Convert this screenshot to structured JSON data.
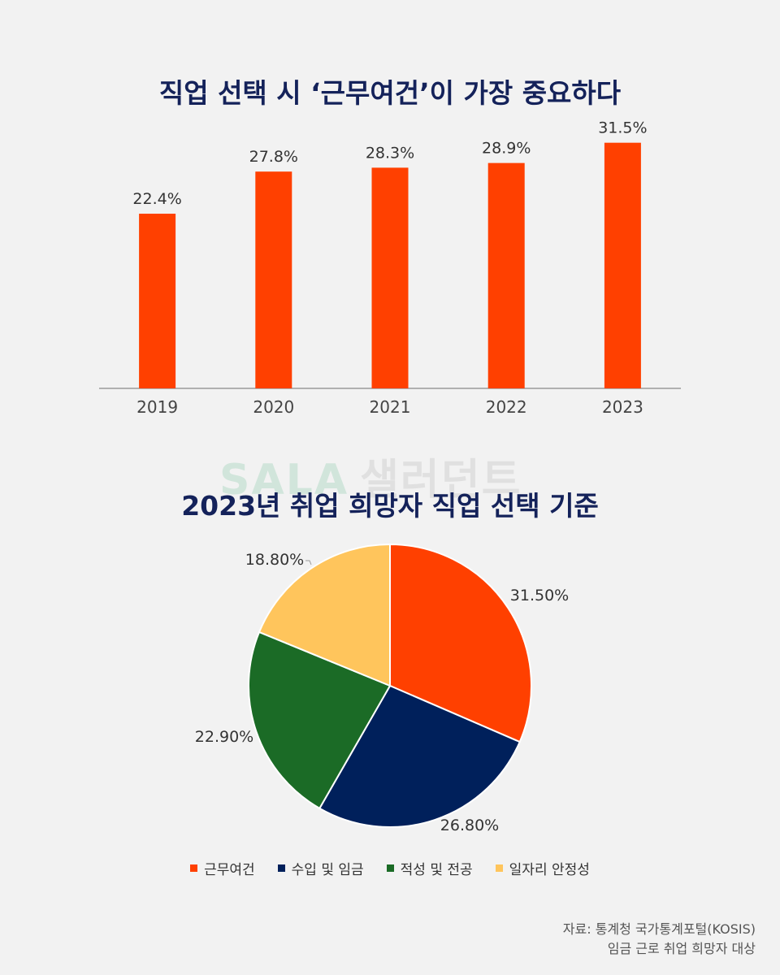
{
  "watermark": {
    "latin": "SALA",
    "korean": "샐러던트"
  },
  "chart_data": [
    {
      "type": "bar",
      "title": "직업 선택 시 ‘근무여건’이 가장 중요하다",
      "categories": [
        "2019",
        "2020",
        "2021",
        "2022",
        "2023"
      ],
      "values": [
        22.4,
        27.8,
        28.3,
        28.9,
        31.5
      ],
      "value_labels": [
        "22.4%",
        "27.8%",
        "28.3%",
        "28.9%",
        "31.5%"
      ],
      "ylim": [
        0,
        32.3
      ],
      "color": "#ff4000",
      "grid": false
    },
    {
      "type": "pie",
      "title": "2023년 취업 희망자 직업 선택 기준",
      "slices": [
        {
          "label": "근무여건",
          "value": 31.5,
          "value_label": "31.50%",
          "color": "#ff4000"
        },
        {
          "label": "수입 및 임금",
          "value": 26.8,
          "value_label": "26.80%",
          "color": "#00205b"
        },
        {
          "label": "적성 및 전공",
          "value": 22.9,
          "value_label": "22.90%",
          "color": "#1b6b26"
        },
        {
          "label": "일자리 안정성",
          "value": 18.8,
          "value_label": "18.80%",
          "color": "#ffc55c"
        }
      ],
      "legend_position": "bottom"
    }
  ],
  "source": {
    "line1": "자료: 통계청 국가통계포털(KOSIS)",
    "line2": "임금 근로 취업 희망자 대상"
  }
}
